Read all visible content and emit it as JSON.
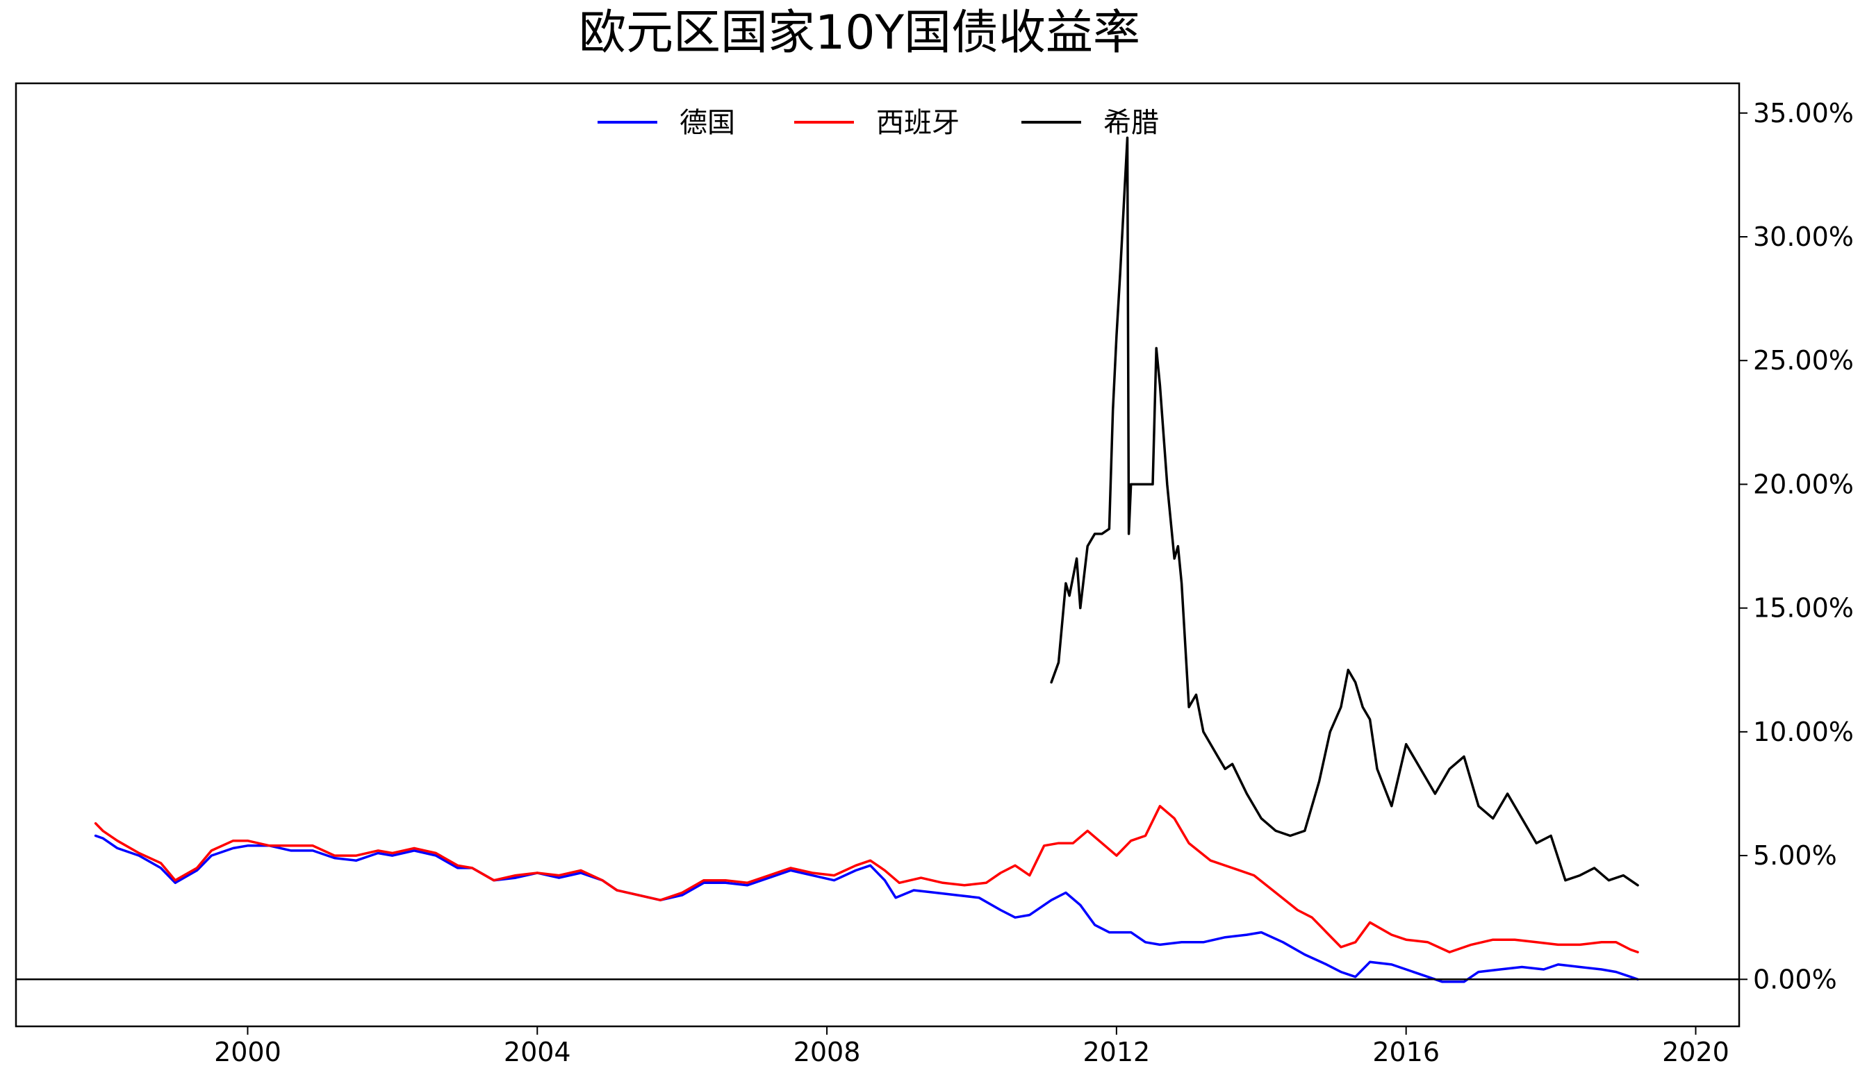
{
  "chart_data": {
    "type": "line",
    "title": "欧元区国家10Y国债收益率",
    "xlabel": "",
    "ylabel": "",
    "y_axis_side": "right",
    "y_format": "percent_2dp",
    "xlim": [
      1996.8,
      2020.6
    ],
    "ylim": [
      -1.9,
      36.2
    ],
    "x_ticks": [
      2000,
      2004,
      2008,
      2012,
      2016,
      2020
    ],
    "x_tick_labels": [
      "2000",
      "2004",
      "2008",
      "2012",
      "2016",
      "2020"
    ],
    "y_ticks": [
      0,
      5,
      10,
      15,
      20,
      25,
      30,
      35
    ],
    "y_tick_labels": [
      "0.00%",
      "5.00%",
      "10.00%",
      "15.00%",
      "20.00%",
      "25.00%",
      "30.00%",
      "35.00%"
    ],
    "zero_line": true,
    "grid": false,
    "legend_position": "top-center",
    "series": [
      {
        "name": "德国",
        "color": "#0000ff",
        "x": [
          1997.9,
          1998.0,
          1998.2,
          1998.5,
          1998.8,
          1999.0,
          1999.3,
          1999.5,
          1999.8,
          2000.0,
          2000.3,
          2000.6,
          2000.9,
          2001.2,
          2001.5,
          2001.8,
          2002.0,
          2002.3,
          2002.6,
          2002.9,
          2003.1,
          2003.4,
          2003.7,
          2004.0,
          2004.3,
          2004.6,
          2004.9,
          2005.1,
          2005.4,
          2005.7,
          2006.0,
          2006.3,
          2006.6,
          2006.9,
          2007.2,
          2007.5,
          2007.8,
          2008.1,
          2008.4,
          2008.6,
          2008.8,
          2008.95,
          2009.2,
          2009.5,
          2009.8,
          2010.1,
          2010.4,
          2010.6,
          2010.8,
          2011.1,
          2011.3,
          2011.5,
          2011.7,
          2011.9,
          2012.2,
          2012.4,
          2012.6,
          2012.9,
          2013.2,
          2013.5,
          2013.8,
          2014.0,
          2014.3,
          2014.6,
          2014.9,
          2015.1,
          2015.3,
          2015.5,
          2015.8,
          2016.0,
          2016.3,
          2016.5,
          2016.8,
          2017.0,
          2017.3,
          2017.6,
          2017.9,
          2018.1,
          2018.4,
          2018.7,
          2018.9,
          2019.1,
          2019.2
        ],
        "values": [
          5.8,
          5.7,
          5.3,
          5.0,
          4.5,
          3.9,
          4.4,
          5.0,
          5.3,
          5.4,
          5.4,
          5.2,
          5.2,
          4.9,
          4.8,
          5.1,
          5.0,
          5.2,
          5.0,
          4.5,
          4.5,
          4.0,
          4.1,
          4.3,
          4.1,
          4.3,
          4.0,
          3.6,
          3.4,
          3.2,
          3.4,
          3.9,
          3.9,
          3.8,
          4.1,
          4.4,
          4.2,
          4.0,
          4.4,
          4.6,
          4.0,
          3.3,
          3.6,
          3.5,
          3.4,
          3.3,
          2.8,
          2.5,
          2.6,
          3.2,
          3.5,
          3.0,
          2.2,
          1.9,
          1.9,
          1.5,
          1.4,
          1.5,
          1.5,
          1.7,
          1.8,
          1.9,
          1.5,
          1.0,
          0.6,
          0.3,
          0.1,
          0.7,
          0.6,
          0.4,
          0.1,
          -0.1,
          -0.1,
          0.3,
          0.4,
          0.5,
          0.4,
          0.6,
          0.5,
          0.4,
          0.3,
          0.1,
          0.0
        ]
      },
      {
        "name": "西班牙",
        "color": "#ff0000",
        "x": [
          1997.9,
          1998.0,
          1998.2,
          1998.5,
          1998.8,
          1999.0,
          1999.3,
          1999.5,
          1999.8,
          2000.0,
          2000.3,
          2000.6,
          2000.9,
          2001.2,
          2001.5,
          2001.8,
          2002.0,
          2002.3,
          2002.6,
          2002.9,
          2003.1,
          2003.4,
          2003.7,
          2004.0,
          2004.3,
          2004.6,
          2004.9,
          2005.1,
          2005.4,
          2005.7,
          2006.0,
          2006.3,
          2006.6,
          2006.9,
          2007.2,
          2007.5,
          2007.8,
          2008.1,
          2008.4,
          2008.6,
          2008.8,
          2009.0,
          2009.3,
          2009.6,
          2009.9,
          2010.2,
          2010.4,
          2010.6,
          2010.8,
          2011.0,
          2011.2,
          2011.4,
          2011.6,
          2011.8,
          2012.0,
          2012.2,
          2012.4,
          2012.6,
          2012.8,
          2013.0,
          2013.3,
          2013.6,
          2013.9,
          2014.2,
          2014.5,
          2014.7,
          2014.9,
          2015.1,
          2015.3,
          2015.5,
          2015.8,
          2016.0,
          2016.3,
          2016.6,
          2016.9,
          2017.2,
          2017.5,
          2017.8,
          2018.1,
          2018.4,
          2018.7,
          2018.9,
          2019.1,
          2019.2
        ],
        "values": [
          6.3,
          6.0,
          5.6,
          5.1,
          4.7,
          4.0,
          4.5,
          5.2,
          5.6,
          5.6,
          5.4,
          5.4,
          5.4,
          5.0,
          5.0,
          5.2,
          5.1,
          5.3,
          5.1,
          4.6,
          4.5,
          4.0,
          4.2,
          4.3,
          4.2,
          4.4,
          4.0,
          3.6,
          3.4,
          3.2,
          3.5,
          4.0,
          4.0,
          3.9,
          4.2,
          4.5,
          4.3,
          4.2,
          4.6,
          4.8,
          4.4,
          3.9,
          4.1,
          3.9,
          3.8,
          3.9,
          4.3,
          4.6,
          4.2,
          5.4,
          5.5,
          5.5,
          6.0,
          5.5,
          5.0,
          5.6,
          5.8,
          7.0,
          6.5,
          5.5,
          4.8,
          4.5,
          4.2,
          3.5,
          2.8,
          2.5,
          1.9,
          1.3,
          1.5,
          2.3,
          1.8,
          1.6,
          1.5,
          1.1,
          1.4,
          1.6,
          1.6,
          1.5,
          1.4,
          1.4,
          1.5,
          1.5,
          1.2,
          1.1
        ]
      },
      {
        "name": "希腊",
        "color": "#000000",
        "x": [
          2011.1,
          2011.2,
          2011.3,
          2011.35,
          2011.45,
          2011.5,
          2011.6,
          2011.7,
          2011.8,
          2011.9,
          2011.95,
          2012.0,
          2012.05,
          2012.15,
          2012.17,
          2012.2,
          2012.22,
          2012.5,
          2012.55,
          2012.6,
          2012.7,
          2012.8,
          2012.85,
          2012.9,
          2013.0,
          2013.1,
          2013.2,
          2013.4,
          2013.5,
          2013.6,
          2013.8,
          2014.0,
          2014.2,
          2014.4,
          2014.6,
          2014.8,
          2014.95,
          2015.1,
          2015.2,
          2015.3,
          2015.4,
          2015.5,
          2015.6,
          2015.8,
          2016.0,
          2016.2,
          2016.4,
          2016.6,
          2016.8,
          2017.0,
          2017.2,
          2017.4,
          2017.6,
          2017.8,
          2018.0,
          2018.2,
          2018.4,
          2018.6,
          2018.8,
          2019.0,
          2019.2
        ],
        "values": [
          12.0,
          12.8,
          16.0,
          15.5,
          17.0,
          15.0,
          17.5,
          18.0,
          18.0,
          18.2,
          23.0,
          26.0,
          28.5,
          34.0,
          18.0,
          20.0,
          20.0,
          20.0,
          25.5,
          24.0,
          20.0,
          17.0,
          17.5,
          16.0,
          11.0,
          11.5,
          10.0,
          9.0,
          8.5,
          8.7,
          7.5,
          6.5,
          6.0,
          5.8,
          6.0,
          8.0,
          10.0,
          11.0,
          12.5,
          12.0,
          11.0,
          10.5,
          8.5,
          7.0,
          9.5,
          8.5,
          7.5,
          8.5,
          9.0,
          7.0,
          6.5,
          7.5,
          6.5,
          5.5,
          5.8,
          4.0,
          4.2,
          4.5,
          4.0,
          4.2,
          3.8
        ]
      }
    ]
  }
}
